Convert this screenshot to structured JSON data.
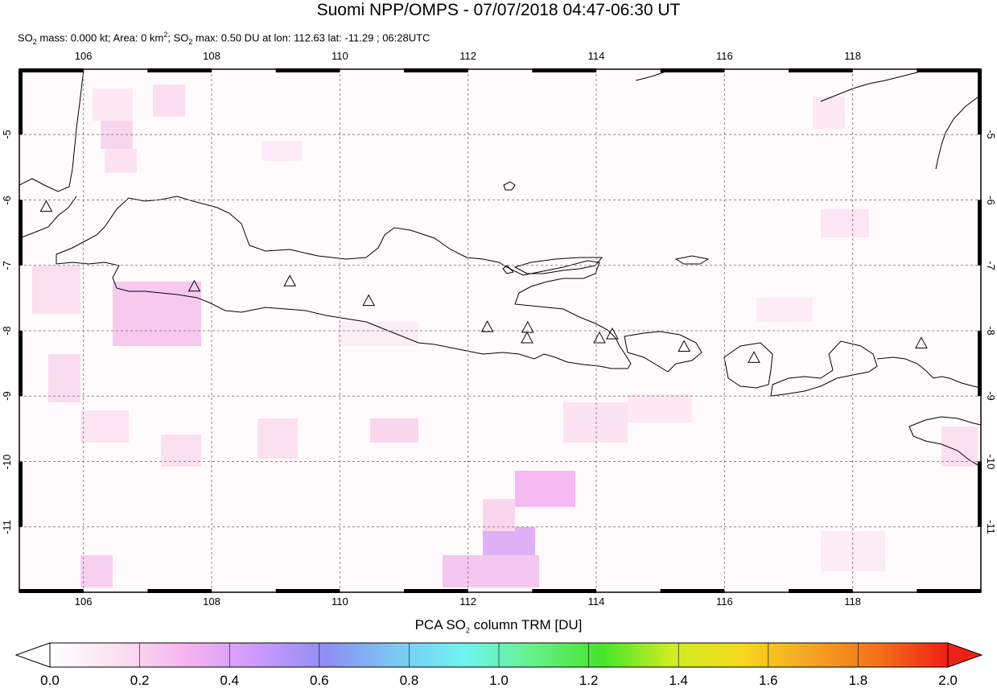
{
  "header": {
    "title": "Suomi NPP/OMPS - 07/07/2018 04:47-06:30 UT",
    "stats_prefix": "SO",
    "stats_sub1": "2",
    "stats_mid1": " mass: 0.000 kt; Area: 0 km",
    "stats_sup": "2",
    "stats_mid2": "; SO",
    "stats_sub2": "2",
    "stats_suffix": " max: 0.50 DU at lon: 112.63 lat: -11.29 ; 06:28UTC"
  },
  "map": {
    "lon_ticks": [
      "106",
      "108",
      "110",
      "112",
      "114",
      "116",
      "118"
    ],
    "lat_ticks": [
      "-5",
      "-6",
      "-7",
      "-8",
      "-9",
      "-10",
      "-11"
    ],
    "lon_range": [
      105,
      120
    ],
    "lat_range": [
      -12,
      -4
    ],
    "volcano_markers": [
      {
        "lon": 105.42,
        "lat": -6.1
      },
      {
        "lon": 107.73,
        "lat": -7.32
      },
      {
        "lon": 109.22,
        "lat": -7.24
      },
      {
        "lon": 110.45,
        "lat": -7.54
      },
      {
        "lon": 112.3,
        "lat": -7.94
      },
      {
        "lon": 112.93,
        "lat": -7.95
      },
      {
        "lon": 112.92,
        "lat": -8.11
      },
      {
        "lon": 114.05,
        "lat": -8.11
      },
      {
        "lon": 114.25,
        "lat": -8.05
      },
      {
        "lon": 115.37,
        "lat": -8.24
      },
      {
        "lon": 116.46,
        "lat": -8.41
      },
      {
        "lon": 119.07,
        "lat": -8.19
      }
    ]
  },
  "colorbar": {
    "label_prefix": "PCA SO",
    "label_sub": "2",
    "label_suffix": " column TRM [DU]",
    "ticks": [
      "0.0",
      "0.2",
      "0.4",
      "0.6",
      "0.8",
      "1.0",
      "1.2",
      "1.4",
      "1.6",
      "1.8",
      "2.0"
    ],
    "range": [
      0,
      2
    ],
    "colors": [
      "#ffffff",
      "#fbe0f0",
      "#f6b2f0",
      "#cc99ff",
      "#8e8ef5",
      "#7ac8f5",
      "#6ef5f0",
      "#66f08a",
      "#44e62a",
      "#cfee22",
      "#f6d91e",
      "#f5a522",
      "#f57018",
      "#f02014"
    ]
  }
}
